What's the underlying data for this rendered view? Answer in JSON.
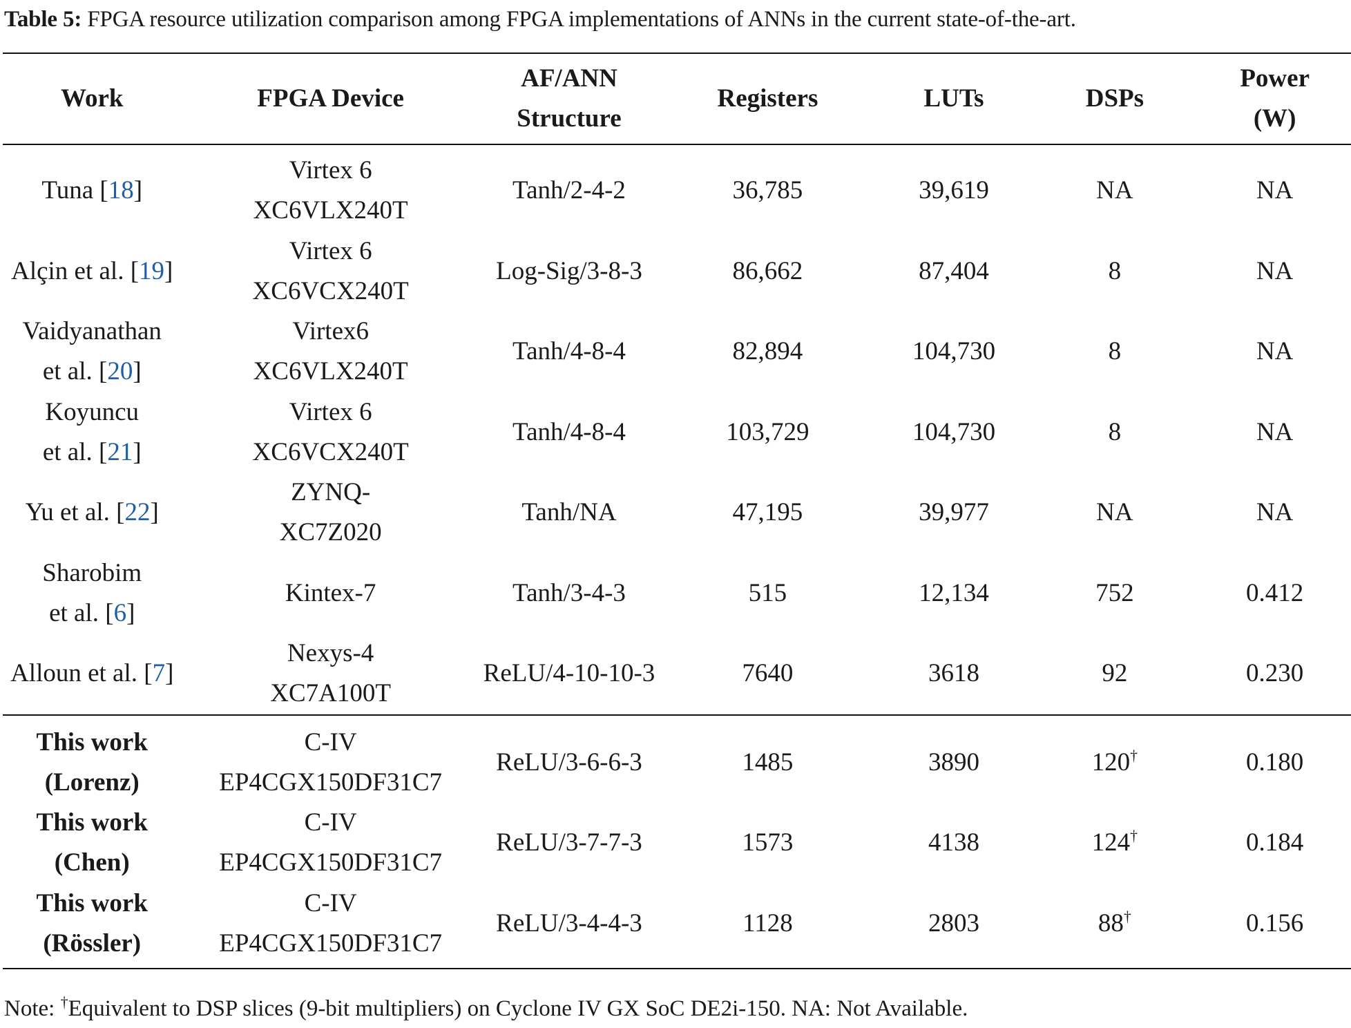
{
  "caption": {
    "label": "Table 5:",
    "text": "FPGA resource utilization comparison among FPGA implementations of ANNs in the current state-of-the-art."
  },
  "headers": {
    "work": "Work",
    "device": "FPGA Device",
    "af_line1": "AF/ANN",
    "af_line2": "Structure",
    "registers": "Registers",
    "luts": "LUTs",
    "dsps": "DSPs",
    "power_line1": "Power",
    "power_line2": "(W)"
  },
  "rows": [
    {
      "work1": "Tuna [",
      "ref": "18",
      "work_end": "]",
      "work2": "",
      "work2_ref": "",
      "work2_end": "",
      "dev1": "Virtex 6",
      "dev2": "XC6VLX240T",
      "af": "Tanh/2-4-2",
      "registers": "36,785",
      "luts": "39,619",
      "dsps": "NA",
      "power": "NA"
    },
    {
      "work1": "Alçin et al. [",
      "ref": "19",
      "work_end": "]",
      "work2": "",
      "work2_ref": "",
      "work2_end": "",
      "dev1": "Virtex 6",
      "dev2": "XC6VCX240T",
      "af": "Log-Sig/3-8-3",
      "registers": "86,662",
      "luts": "87,404",
      "dsps": "8",
      "power": "NA"
    },
    {
      "work1": "Vaidyanathan",
      "ref": "",
      "work_end": "",
      "work2": "et al. [",
      "work2_ref": "20",
      "work2_end": "]",
      "dev1": "Virtex6",
      "dev2": "XC6VLX240T",
      "af": "Tanh/4-8-4",
      "registers": "82,894",
      "luts": "104,730",
      "dsps": "8",
      "power": "NA"
    },
    {
      "work1": "Koyuncu",
      "ref": "",
      "work_end": "",
      "work2": "et al. [",
      "work2_ref": "21",
      "work2_end": "]",
      "dev1": "Virtex 6",
      "dev2": "XC6VCX240T",
      "af": "Tanh/4-8-4",
      "registers": "103,729",
      "luts": "104,730",
      "dsps": "8",
      "power": "NA"
    },
    {
      "work1": "Yu et al. [",
      "ref": "22",
      "work_end": "]",
      "work2": "",
      "work2_ref": "",
      "work2_end": "",
      "dev1": "ZYNQ-",
      "dev2": "XC7Z020",
      "af": "Tanh/NA",
      "registers": "47,195",
      "luts": "39,977",
      "dsps": "NA",
      "power": "NA"
    },
    {
      "work1": "Sharobim",
      "ref": "",
      "work_end": "",
      "work2": "et al. [",
      "work2_ref": "6",
      "work2_end": "]",
      "dev1": "Kintex-7",
      "dev2": "",
      "af": "Tanh/3-4-3",
      "registers": "515",
      "luts": "12,134",
      "dsps": "752",
      "power": "0.412"
    },
    {
      "work1": "Alloun et al. [",
      "ref": "7",
      "work_end": "]",
      "work2": "",
      "work2_ref": "",
      "work2_end": "",
      "dev1": "Nexys-4",
      "dev2": "XC7A100T",
      "af": "ReLU/4-10-10-3",
      "registers": "7640",
      "luts": "3618",
      "dsps": "92",
      "power": "0.230"
    }
  ],
  "this_work": [
    {
      "work1": "This work",
      "work2": "(Lorenz)",
      "dev1": "C-IV",
      "dev2": "EP4CGX150DF31C7",
      "af": "ReLU/3-6-6-3",
      "registers": "1485",
      "luts": "3890",
      "dsps": "120",
      "dsp_mark": "†",
      "power": "0.180"
    },
    {
      "work1": "This work",
      "work2": "(Chen)",
      "dev1": "C-IV",
      "dev2": "EP4CGX150DF31C7",
      "af": "ReLU/3-7-7-3",
      "registers": "1573",
      "luts": "4138",
      "dsps": "124",
      "dsp_mark": "†",
      "power": "0.184"
    },
    {
      "work1": "This work",
      "work2": "(Rössler)",
      "dev1": "C-IV",
      "dev2": "EP4CGX150DF31C7",
      "af": "ReLU/3-4-4-3",
      "registers": "1128",
      "luts": "2803",
      "dsps": "88",
      "dsp_mark": "†",
      "power": "0.156"
    }
  ],
  "note": {
    "prefix": "Note: ",
    "mark": "†",
    "text": "Equivalent to DSP slices (9-bit multipliers) on Cyclone IV GX SoC DE2i-150. NA: Not Available."
  },
  "colors": {
    "text": "#1a1a1a",
    "reference_link": "#1f5fa8",
    "rule": "#111111"
  }
}
